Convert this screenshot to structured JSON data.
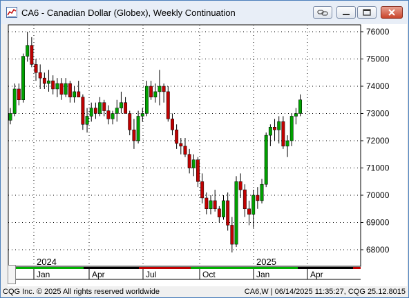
{
  "window": {
    "title": "CA6 - Canadian Dollar (Globex), Weekly Continuation",
    "icons": {
      "app": "cqg-chart-icon",
      "link": "chain-link-icon",
      "minimize": "minimize-icon",
      "restore": "restore-icon",
      "close": "close-icon"
    }
  },
  "footer": {
    "left": "CQG Inc. © 2025 All rights reserved worldwide",
    "right": "CA6,W | 06/14/2025 11:35:27, CQG 25.12.8015"
  },
  "chart_data": {
    "type": "candlestick",
    "title": "CA6 - Canadian Dollar (Globex), Weekly Continuation",
    "y_ticks": [
      "76000",
      "75000",
      "74000",
      "73000",
      "72000",
      "71000",
      "70000",
      "69000",
      "68000"
    ],
    "ylim": [
      67500,
      76300
    ],
    "year_labels": [
      "2024",
      "2025"
    ],
    "x_ticks": [
      "Jan",
      "Apr",
      "Jul",
      "Oct",
      "Jan",
      "Apr"
    ],
    "grid": true,
    "colors": {
      "up": "#00a000",
      "down": "#c00000",
      "wick": "#000000"
    },
    "candles": [
      [
        72750,
        73200,
        72600,
        73000
      ],
      [
        73000,
        74100,
        72900,
        73900
      ],
      [
        73900,
        74100,
        73300,
        73500
      ],
      [
        73500,
        75200,
        73400,
        75100
      ],
      [
        75100,
        76000,
        74900,
        75500
      ],
      [
        75500,
        75800,
        74700,
        74800
      ],
      [
        74800,
        75000,
        74200,
        74500
      ],
      [
        74500,
        74800,
        73900,
        74300
      ],
      [
        74300,
        74500,
        73900,
        74100
      ],
      [
        74100,
        74600,
        73800,
        74200
      ],
      [
        74200,
        74400,
        73700,
        73900
      ],
      [
        73900,
        74300,
        73600,
        74100
      ],
      [
        74100,
        74300,
        73500,
        73700
      ],
      [
        73700,
        74300,
        73600,
        74100
      ],
      [
        74100,
        74200,
        73400,
        73600
      ],
      [
        73600,
        74000,
        73400,
        73800
      ],
      [
        73800,
        74200,
        73600,
        73600
      ],
      [
        73600,
        73700,
        72400,
        72600
      ],
      [
        72600,
        73200,
        72300,
        72900
      ],
      [
        72900,
        73400,
        72700,
        73200
      ],
      [
        73200,
        73400,
        72800,
        73000
      ],
      [
        73000,
        73600,
        72900,
        73400
      ],
      [
        73400,
        73500,
        72900,
        73100
      ],
      [
        73100,
        73300,
        72600,
        72800
      ],
      [
        72800,
        73100,
        72600,
        73000
      ],
      [
        73000,
        73500,
        72700,
        73200
      ],
      [
        73200,
        73800,
        73000,
        73400
      ],
      [
        73400,
        73600,
        73000,
        73000
      ],
      [
        73000,
        73100,
        72200,
        72400
      ],
      [
        72400,
        72800,
        71700,
        72000
      ],
      [
        72000,
        73100,
        71900,
        72900
      ],
      [
        72900,
        73200,
        72700,
        73000
      ],
      [
        73000,
        74200,
        72900,
        74000
      ],
      [
        74000,
        74200,
        73500,
        73600
      ],
      [
        73600,
        74100,
        73400,
        73800
      ],
      [
        73800,
        74600,
        73300,
        74000
      ],
      [
        74000,
        74100,
        73400,
        73800
      ],
      [
        73800,
        74000,
        72700,
        72800
      ],
      [
        72800,
        73000,
        72200,
        72400
      ],
      [
        72400,
        72600,
        71700,
        71900
      ],
      [
        71900,
        72100,
        71500,
        71800
      ],
      [
        71800,
        72100,
        71400,
        71500
      ],
      [
        71500,
        71700,
        70800,
        71000
      ],
      [
        71000,
        71500,
        70700,
        71300
      ],
      [
        71300,
        71400,
        70300,
        70500
      ],
      [
        70500,
        70800,
        69700,
        69900
      ],
      [
        69900,
        70100,
        69300,
        69500
      ],
      [
        69500,
        70000,
        69300,
        69800
      ],
      [
        69800,
        70200,
        69400,
        69500
      ],
      [
        69500,
        69600,
        69000,
        69200
      ],
      [
        69200,
        70000,
        69100,
        69800
      ],
      [
        69800,
        70100,
        68700,
        68900
      ],
      [
        68900,
        69200,
        67900,
        68200
      ],
      [
        68200,
        70700,
        68100,
        70500
      ],
      [
        70500,
        70800,
        69900,
        70200
      ],
      [
        70200,
        70400,
        69200,
        69500
      ],
      [
        69500,
        69800,
        68900,
        69300
      ],
      [
        69300,
        70200,
        68800,
        70000
      ],
      [
        70000,
        70300,
        69500,
        69800
      ],
      [
        69800,
        70600,
        69700,
        70400
      ],
      [
        70400,
        72300,
        70300,
        72200
      ],
      [
        72200,
        72600,
        71800,
        72500
      ],
      [
        72500,
        72800,
        72000,
        72400
      ],
      [
        72400,
        72900,
        71900,
        72700
      ],
      [
        72700,
        72900,
        71700,
        71800
      ],
      [
        71800,
        72200,
        71400,
        72000
      ],
      [
        72000,
        73000,
        71800,
        72900
      ],
      [
        72900,
        73200,
        72600,
        73000
      ],
      [
        73000,
        73700,
        72900,
        73500
      ]
    ]
  }
}
